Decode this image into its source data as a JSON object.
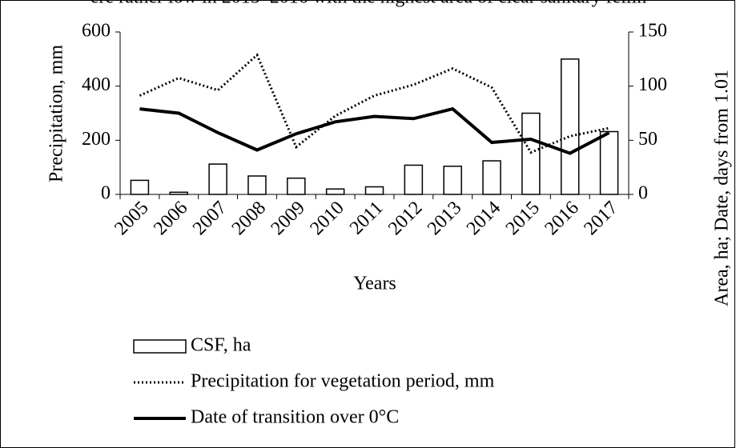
{
  "top_text": "ere rather low in 2015–2016 with the highest area of clear sanitary fellin",
  "chart_data": {
    "type": "bar-line",
    "y_axis_label": "Precipitation, mm",
    "y2_axis_label": "Area, ha; Date, days from 1.01",
    "x_axis_label": "Years",
    "categories": [
      "2005",
      "2006",
      "2007",
      "2008",
      "2009",
      "2010",
      "2011",
      "2012",
      "2013",
      "2014",
      "2015",
      "2016",
      "2017"
    ],
    "ylim": [
      0,
      600
    ],
    "yticks": [
      0,
      200,
      400,
      600
    ],
    "y2lim": [
      0,
      150
    ],
    "y2ticks": [
      0,
      50,
      100,
      150
    ],
    "legend": "bottom",
    "series": [
      {
        "name": "CSF, ha",
        "type": "bar",
        "axis": "y2",
        "color": "#ffffff",
        "stroke": "#000000",
        "values": [
          13,
          2,
          28,
          17,
          15,
          5,
          7,
          27,
          26,
          31,
          75,
          125,
          58
        ]
      },
      {
        "name": "Precipitation for vegetation period, mm",
        "type": "line",
        "dash": "dotted",
        "color": "#000000",
        "values": [
          365,
          430,
          385,
          515,
          175,
          290,
          365,
          405,
          465,
          395,
          155,
          215,
          245
        ]
      },
      {
        "name": "Date of transition over 0°C",
        "type": "line",
        "axis": "y2",
        "dash": "solid",
        "color": "#000000",
        "values": [
          79,
          75,
          57,
          41,
          56,
          67,
          72,
          70,
          79,
          48,
          51,
          38,
          57
        ]
      }
    ]
  }
}
